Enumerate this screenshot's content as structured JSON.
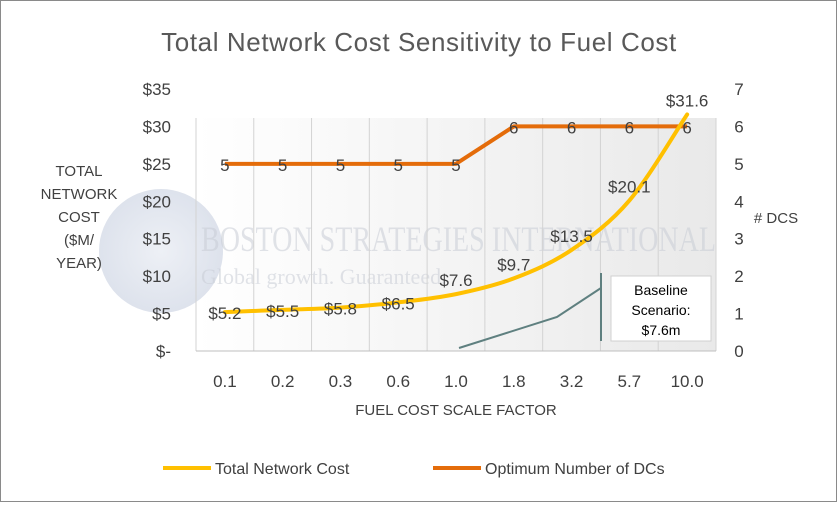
{
  "chart_data": {
    "type": "line",
    "title": "Total Network Cost Sensitivity to Fuel Cost",
    "xlabel": "FUEL COST SCALE FACTOR",
    "ylabel_lines": [
      "TOTAL",
      "NETWORK",
      "COST",
      "($M/",
      "YEAR)"
    ],
    "y2label": "# DCS",
    "categories": [
      "0.1",
      "0.2",
      "0.3",
      "0.6",
      "1.0",
      "1.8",
      "3.2",
      "5.7",
      "10.0"
    ],
    "y_ticks": [
      "$-",
      "$5",
      "$10",
      "$15",
      "$20",
      "$25",
      "$30",
      "$35"
    ],
    "ylim": [
      0,
      35
    ],
    "y2_ticks": [
      "0",
      "1",
      "2",
      "3",
      "4",
      "5",
      "6",
      "7"
    ],
    "y2lim": [
      0,
      7
    ],
    "grid": "vertical",
    "legend_position": "bottom",
    "series": [
      {
        "name": "Total Network Cost",
        "axis": "left",
        "color": "#FFC000",
        "values": [
          5.2,
          5.5,
          5.8,
          6.5,
          7.6,
          9.7,
          13.5,
          20.1,
          31.6
        ],
        "labels": [
          "$5.2",
          "$5.5",
          "$5.8",
          "$6.5",
          "$7.6",
          "$9.7",
          "$13.5",
          "$20.1",
          "$31.6"
        ]
      },
      {
        "name": "Optimum Number of DCs",
        "axis": "right",
        "color": "#E46C0A",
        "values": [
          5,
          5,
          5,
          5,
          5,
          6,
          6,
          6,
          6
        ],
        "labels": [
          "5",
          "5",
          "5",
          "5",
          "5",
          "6",
          "6",
          "6",
          "6"
        ]
      }
    ],
    "annotation": {
      "lines": [
        "Baseline",
        "Scenario:",
        "$7.6m"
      ],
      "color": "#5F8080"
    },
    "watermark": {
      "line1": "BOSTON STRATEGIES INTERNATIONAL",
      "line2": "Global growth. Guaranteed."
    }
  }
}
